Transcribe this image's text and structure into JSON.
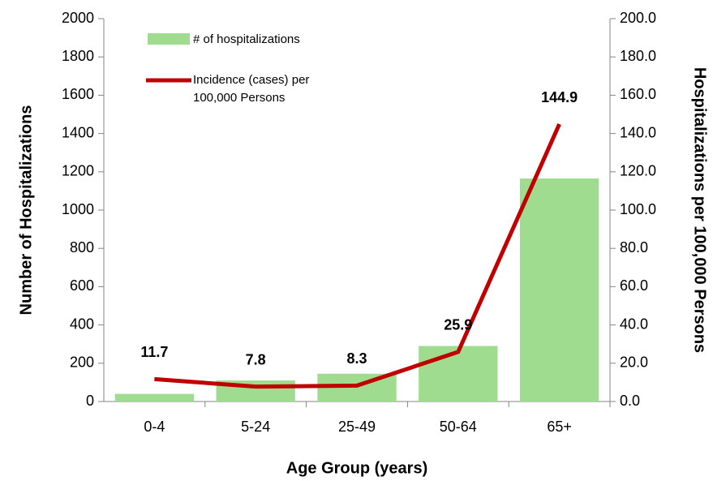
{
  "chart_data": {
    "type": "bar",
    "x_label": "Age Group (years)",
    "y_label": "Number of Hospitalizations",
    "y2_label": "Hospitalizations per 100,000 Persons",
    "categories": [
      "0-4",
      "5-24",
      "25-49",
      "50-64",
      "65+"
    ],
    "series": [
      {
        "name": "# of hospitalizations",
        "type": "bar",
        "color": "#a0dc8f",
        "values": [
          40,
          110,
          145,
          290,
          1165
        ]
      },
      {
        "name": "Incidence (cases) per 100,000 Persons",
        "type": "line",
        "axis": "y2",
        "color": "#c00000",
        "values": [
          11.7,
          7.8,
          8.3,
          25.9,
          144.9
        ]
      }
    ],
    "ylim": [
      0,
      2000
    ],
    "yticks": [
      0,
      200,
      400,
      600,
      800,
      1000,
      1200,
      1400,
      1600,
      1800,
      2000
    ],
    "y2lim": [
      0,
      200
    ],
    "y2ticks": [
      {
        "value": 0,
        "label": "0.0"
      },
      {
        "value": 20,
        "label": "20.0"
      },
      {
        "value": 40,
        "label": "40.0"
      },
      {
        "value": 60,
        "label": "60.0"
      },
      {
        "value": 80,
        "label": "80.0"
      },
      {
        "value": 100,
        "label": "100.0"
      },
      {
        "value": 120,
        "label": "120.0"
      },
      {
        "value": 140,
        "label": "140.0"
      },
      {
        "value": 160,
        "label": "160.0"
      },
      {
        "value": 180,
        "label": "180.0"
      },
      {
        "value": 200,
        "label": "200.0"
      }
    ],
    "grid": false
  }
}
